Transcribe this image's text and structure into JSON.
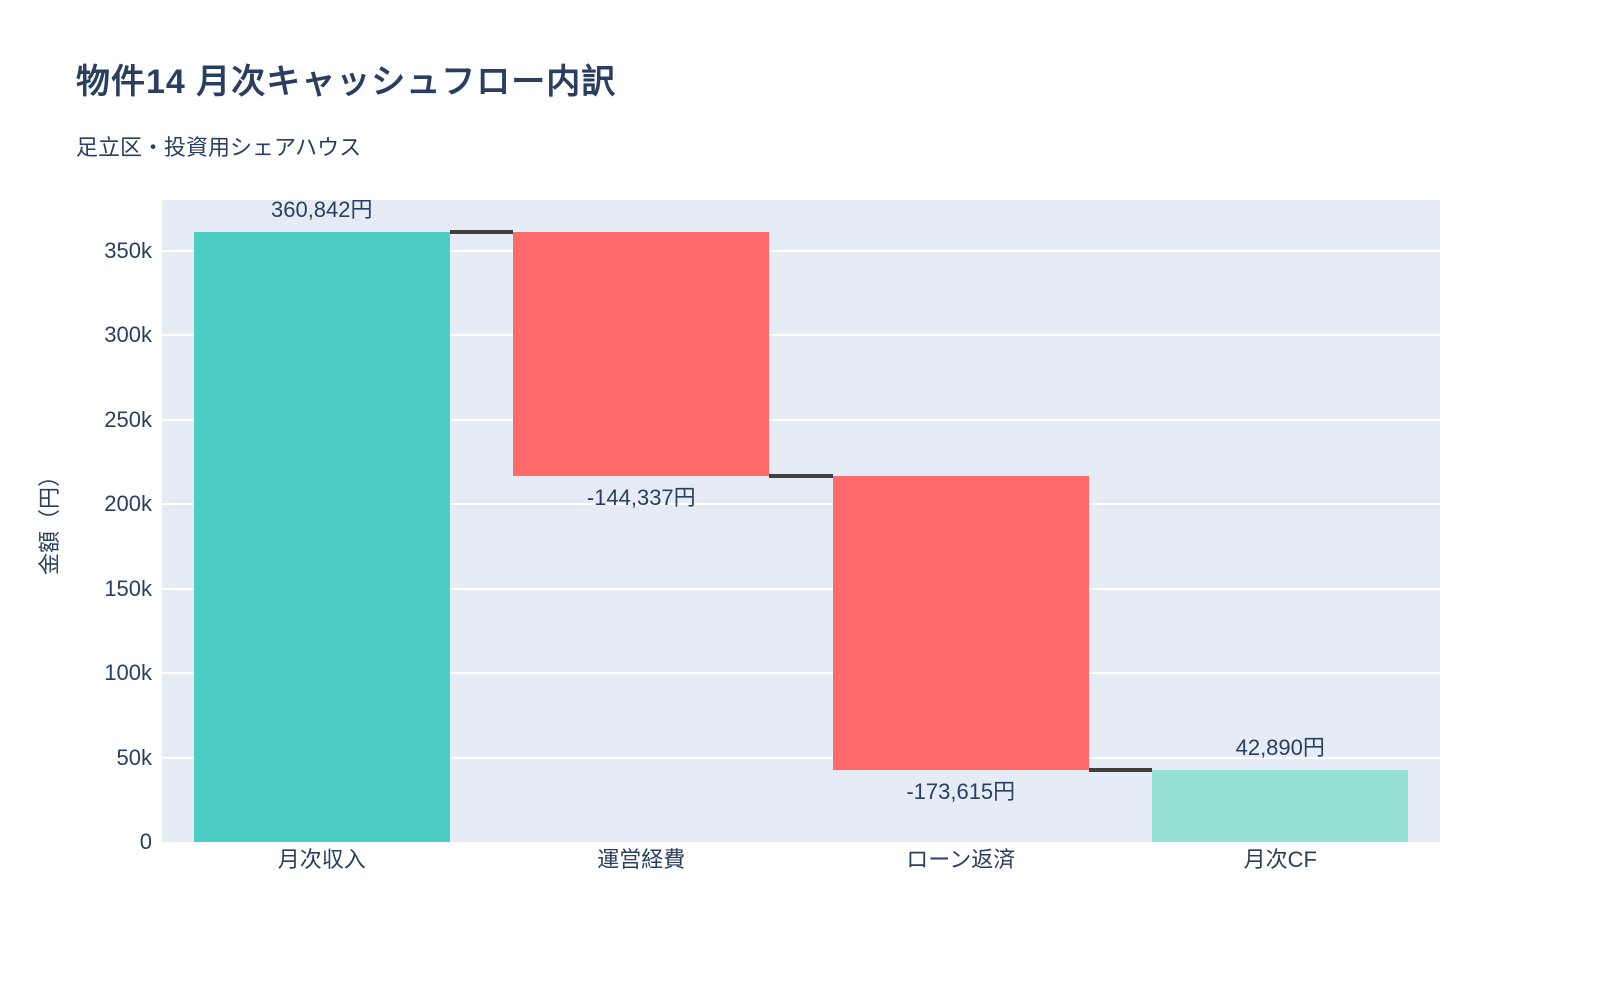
{
  "chart_data": {
    "type": "waterfall",
    "title": "物件14 月次キャッシュフロー内訳",
    "subtitle": "足立区・投資用シェアハウス",
    "ylabel": "金額（円）",
    "categories": [
      "月次収入",
      "運営経費",
      "ローン返済",
      "月次CF"
    ],
    "values": [
      360842,
      -144337,
      -173615,
      42890
    ],
    "measure": [
      "relative",
      "relative",
      "relative",
      "total"
    ],
    "bar_labels": [
      "360,842円",
      "-144,337円",
      "-173,615円",
      "42,890円"
    ],
    "running_totals": [
      360842,
      216505,
      42890,
      42890
    ],
    "ytick_values": [
      0,
      50000,
      100000,
      150000,
      200000,
      250000,
      300000,
      350000
    ],
    "ytick_labels": [
      "0",
      "50k",
      "100k",
      "150k",
      "200k",
      "250k",
      "300k",
      "350k"
    ],
    "ylim": [
      0,
      380000
    ],
    "grid": true,
    "legend": "none"
  },
  "colors": {
    "increasing_bar": "#4ECDC4",
    "decreasing_bar": "#FF6B6B",
    "total_bar": "#95E1D3",
    "connector": "#404040",
    "plot_background": "#E5ECF6",
    "gridline": "#FFFFFF",
    "text": "#2A3F5F",
    "page_background": "#FFFFFF"
  }
}
